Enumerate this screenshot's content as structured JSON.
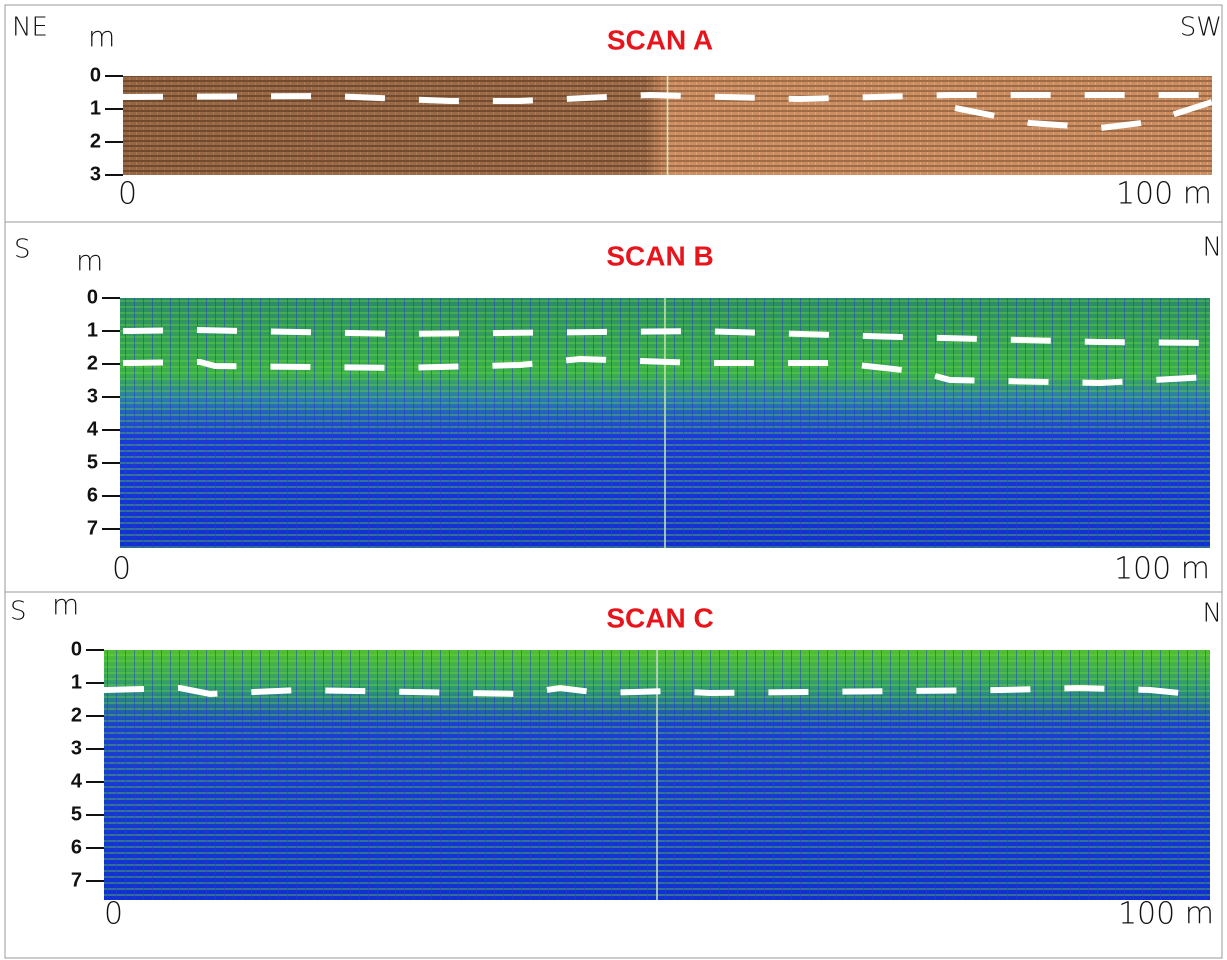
{
  "panels": [
    {
      "title": "SCAN A",
      "left_dir": "NE",
      "right_dir": "SW",
      "unit": "m",
      "depth_ticks": [
        0,
        1,
        2,
        3
      ],
      "x_start": "0",
      "x_end": "100 m"
    },
    {
      "title": "SCAN B",
      "left_dir": "S",
      "right_dir": "N",
      "unit": "m",
      "depth_ticks": [
        0,
        1,
        2,
        3,
        4,
        5,
        6,
        7
      ],
      "x_start": "0",
      "x_end": "100 m"
    },
    {
      "title": "SCAN C",
      "left_dir": "S",
      "right_dir": "N",
      "unit": "m",
      "depth_ticks": [
        0,
        1,
        2,
        3,
        4,
        5,
        6,
        7
      ],
      "x_start": "0",
      "x_end": "100 m"
    }
  ]
}
